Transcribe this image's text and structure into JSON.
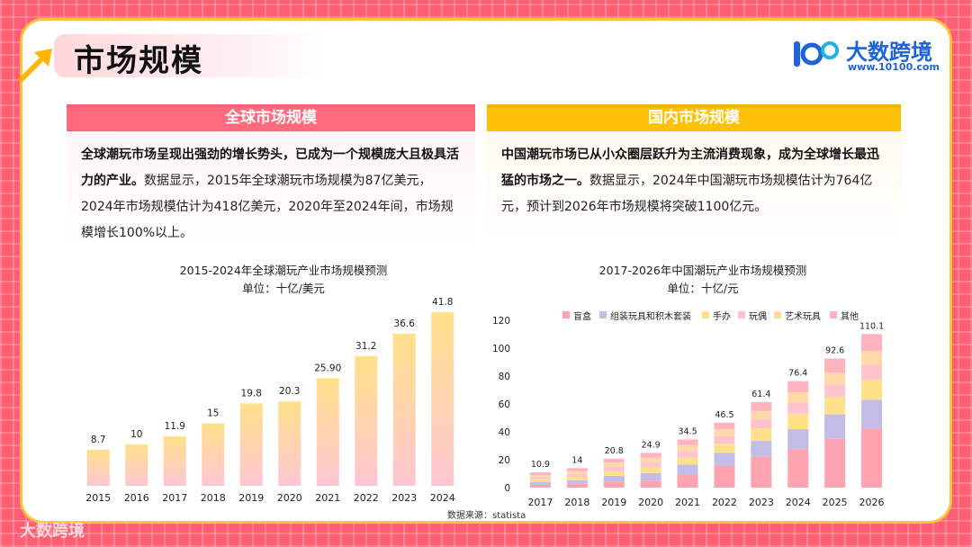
{
  "page": {
    "title": "市场规模",
    "logo_name": "大数跨境",
    "logo_url": "www.10100.com",
    "watermark": "大数跨境",
    "source": "数据来源：statista"
  },
  "sections": {
    "global": {
      "header": "全球市场规模",
      "bold": "全球潮玩市场呈现出强劲的增长势头，已成为一个规模庞大且极具活力的产业。",
      "text": "数据显示，2015年全球潮玩市场规模为87亿美元，2024年市场规模估计为418亿美元，2020年至2024年间，市场规模增长100%以上。"
    },
    "domestic": {
      "header": "国内市场规模",
      "bold": "中国潮玩市场已从小众圈层跃升为主流消费现象，成为全球增长最迅猛的市场之一。",
      "text": "数据显示，2024年中国潮玩市场规模估计为764亿元，预计到2026年市场规模将突破1100亿元。"
    }
  },
  "colors": {
    "primary": "#ff6b7c",
    "accent": "#ffc107",
    "bar_top": "#ffe08a",
    "bar_bottom": "#ffc6d2",
    "blind_box": "#ffa3b1",
    "assembled": "#c3bce6",
    "figures": "#ffe08a",
    "dolls": "#ffc3d0",
    "art_toys": "#ffd9a8",
    "other": "#ffb3bf"
  },
  "chart_data": [
    {
      "type": "bar",
      "title": "2015-2024年全球潮玩产业市场规模预测",
      "subtitle": "单位：十亿/美元",
      "categories": [
        "2015",
        "2016",
        "2017",
        "2018",
        "2019",
        "2020",
        "2021",
        "2022",
        "2023",
        "2024"
      ],
      "values": [
        8.7,
        10,
        11.9,
        15,
        19.8,
        20.3,
        25.9,
        31.2,
        36.6,
        41.8
      ],
      "labels": [
        "8.7",
        "10",
        "11.9",
        "15",
        "19.8",
        "20.3",
        "25.90",
        "31.2",
        "36.6",
        "41.8"
      ],
      "ylim": [
        0,
        45
      ],
      "grid": false
    },
    {
      "type": "bar",
      "stacked": true,
      "title": "2017-2026年中国潮玩产业市场规模预测",
      "subtitle": "单位：十亿/元",
      "categories": [
        "2017",
        "2018",
        "2019",
        "2020",
        "2021",
        "2022",
        "2023",
        "2024",
        "2025",
        "2026"
      ],
      "totals": [
        10.9,
        14,
        20.8,
        24.9,
        34.5,
        46.5,
        61.4,
        76.4,
        92.6,
        110.1
      ],
      "yticks": [
        0,
        20,
        40,
        60,
        80,
        100,
        120
      ],
      "ylim": [
        0,
        120
      ],
      "legend_position": "top",
      "series": [
        {
          "name": "盲盒",
          "values": [
            2.0,
            2.8,
            4.0,
            5.0,
            9.0,
            15.5,
            22.0,
            27.5,
            35.0,
            42.5
          ]
        },
        {
          "name": "组装玩具和积木套装",
          "values": [
            2.0,
            2.5,
            4.5,
            5.5,
            7.5,
            9.5,
            11.5,
            14.5,
            17.5,
            20.5
          ]
        },
        {
          "name": "手办",
          "values": [
            2.0,
            2.5,
            3.5,
            4.0,
            5.0,
            6.5,
            9.0,
            11.0,
            12.5,
            14.5
          ]
        },
        {
          "name": "玩偶",
          "values": [
            1.5,
            2.0,
            3.0,
            3.5,
            4.5,
            5.5,
            6.5,
            8.0,
            9.0,
            10.5
          ]
        },
        {
          "name": "艺术玩具",
          "values": [
            1.5,
            2.0,
            3.0,
            3.5,
            4.5,
            5.0,
            6.0,
            7.5,
            8.5,
            10.0
          ]
        },
        {
          "name": "其他",
          "values": [
            1.9,
            2.2,
            2.8,
            3.4,
            4.0,
            4.5,
            6.4,
            7.9,
            10.1,
            12.1
          ]
        }
      ]
    }
  ]
}
